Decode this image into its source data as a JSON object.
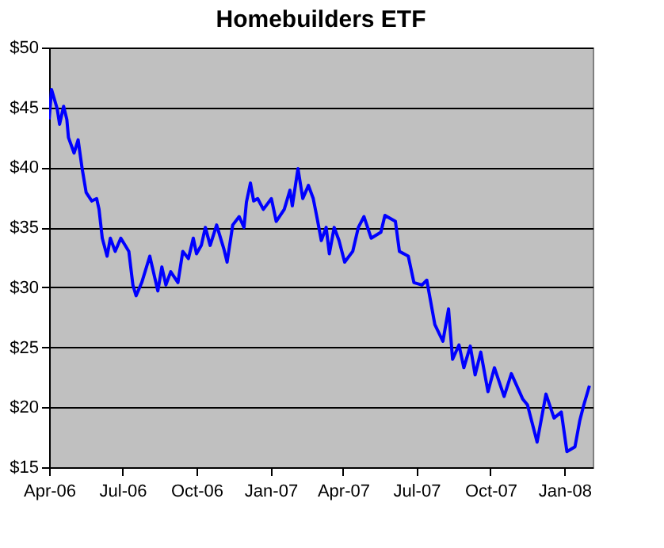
{
  "chart_data": {
    "type": "line",
    "title": "Homebuilders ETF",
    "x": [
      "2006-04-01",
      "2006-04-04",
      "2006-04-11",
      "2006-04-14",
      "2006-04-19",
      "2006-04-23",
      "2006-04-25",
      "2006-05-02",
      "2006-05-07",
      "2006-05-12",
      "2006-05-17",
      "2006-05-24",
      "2006-05-30",
      "2006-06-02",
      "2006-06-06",
      "2006-06-12",
      "2006-06-16",
      "2006-06-22",
      "2006-06-29",
      "2006-07-09",
      "2006-07-14",
      "2006-07-18",
      "2006-07-25",
      "2006-08-04",
      "2006-08-14",
      "2006-08-19",
      "2006-08-24",
      "2006-08-30",
      "2006-09-08",
      "2006-09-14",
      "2006-09-21",
      "2006-09-27",
      "2006-10-01",
      "2006-10-07",
      "2006-10-12",
      "2006-10-18",
      "2006-10-26",
      "2006-11-04",
      "2006-11-08",
      "2006-11-15",
      "2006-11-23",
      "2006-11-29",
      "2006-12-02",
      "2006-12-07",
      "2006-12-11",
      "2006-12-16",
      "2006-12-23",
      "2007-01-02",
      "2007-01-08",
      "2007-01-18",
      "2007-01-25",
      "2007-01-28",
      "2007-02-04",
      "2007-02-10",
      "2007-02-17",
      "2007-02-23",
      "2007-02-28",
      "2007-03-05",
      "2007-03-11",
      "2007-03-15",
      "2007-03-21",
      "2007-03-27",
      "2007-04-03",
      "2007-04-13",
      "2007-04-20",
      "2007-04-27",
      "2007-05-06",
      "2007-05-18",
      "2007-05-23",
      "2007-06-05",
      "2007-06-10",
      "2007-06-21",
      "2007-06-28",
      "2007-07-08",
      "2007-07-14",
      "2007-07-24",
      "2007-08-03",
      "2007-08-10",
      "2007-08-15",
      "2007-08-23",
      "2007-08-29",
      "2007-09-06",
      "2007-09-12",
      "2007-09-19",
      "2007-09-28",
      "2007-10-06",
      "2007-10-18",
      "2007-10-27",
      "2007-11-10",
      "2007-11-16",
      "2007-11-28",
      "2007-12-09",
      "2007-12-19",
      "2007-12-28",
      "2008-01-04",
      "2008-01-14",
      "2008-01-20",
      "2008-01-25",
      "2008-02-01"
    ],
    "series": [
      {
        "color": "#0000ff",
        "values": [
          44.0,
          46.5,
          44.9,
          43.6,
          45.1,
          44.0,
          42.5,
          41.2,
          42.3,
          39.9,
          37.9,
          37.2,
          37.4,
          36.5,
          34.1,
          32.6,
          34.1,
          33.0,
          34.1,
          33.0,
          30.2,
          29.3,
          30.4,
          32.6,
          29.7,
          31.7,
          30.2,
          31.3,
          30.4,
          33.0,
          32.4,
          34.1,
          32.8,
          33.5,
          35.0,
          33.5,
          35.2,
          33.2,
          32.1,
          35.2,
          35.9,
          35.0,
          37.1,
          38.7,
          37.2,
          37.4,
          36.5,
          37.4,
          35.5,
          36.5,
          38.1,
          36.8,
          39.9,
          37.4,
          38.5,
          37.4,
          35.7,
          33.9,
          35.0,
          32.8,
          35.0,
          33.9,
          32.1,
          33.0,
          35.0,
          35.9,
          34.1,
          34.6,
          36.0,
          35.5,
          33.0,
          32.6,
          30.4,
          30.2,
          30.6,
          26.9,
          25.5,
          28.2,
          24.0,
          25.2,
          23.3,
          25.1,
          22.7,
          24.6,
          21.3,
          23.3,
          20.9,
          22.8,
          20.7,
          20.2,
          17.1,
          21.1,
          19.1,
          19.6,
          16.3,
          16.7,
          18.9,
          20.2,
          21.8
        ]
      }
    ],
    "xlim": [
      "2006-04-01",
      "2008-02-05"
    ],
    "xticks": [
      {
        "value": "2006-04-01",
        "label": "Apr-06"
      },
      {
        "value": "2006-07-01",
        "label": "Jul-06"
      },
      {
        "value": "2006-10-01",
        "label": "Oct-06"
      },
      {
        "value": "2007-01-01",
        "label": "Jan-07"
      },
      {
        "value": "2007-04-01",
        "label": "Apr-07"
      },
      {
        "value": "2007-07-01",
        "label": "Jul-07"
      },
      {
        "value": "2007-10-01",
        "label": "Oct-07"
      },
      {
        "value": "2008-01-01",
        "label": "Jan-08"
      }
    ],
    "ylim": [
      15,
      50
    ],
    "yticks": [
      {
        "value": 15,
        "label": "$15"
      },
      {
        "value": 20,
        "label": "$20"
      },
      {
        "value": 25,
        "label": "$25"
      },
      {
        "value": 30,
        "label": "$30"
      },
      {
        "value": 35,
        "label": "$35"
      },
      {
        "value": 40,
        "label": "$40"
      },
      {
        "value": 45,
        "label": "$45"
      },
      {
        "value": 50,
        "label": "$50"
      }
    ],
    "grid": "y",
    "legend": false,
    "marker": "none",
    "line_style": "solid"
  }
}
